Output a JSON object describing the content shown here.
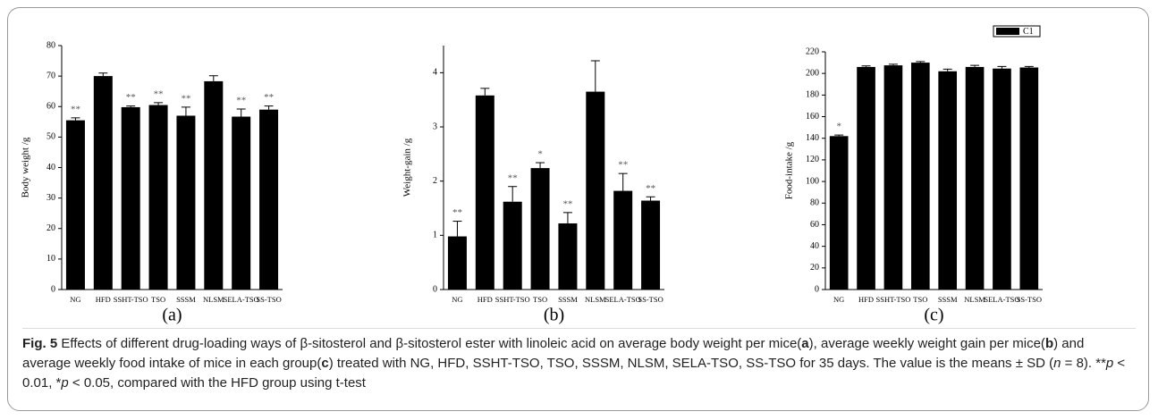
{
  "chart_data": [
    {
      "type": "bar",
      "panel": "(a)",
      "y_label": "Body weight /g",
      "categories": [
        "NG",
        "HFD",
        "SSHT-TSO",
        "TSO",
        "SSSM",
        "NLSM",
        "SELA-TSO",
        "SS-TSO"
      ],
      "values": [
        55.5,
        70,
        59.8,
        60.5,
        57,
        68.3,
        56.7,
        59
      ],
      "errors": [
        0.8,
        1.0,
        0.4,
        0.8,
        2.8,
        1.8,
        2.5,
        1.2
      ],
      "annotations": [
        "**",
        null,
        "**",
        "**",
        "**",
        null,
        "**",
        "**"
      ],
      "color": "#000000",
      "ylim": [
        0,
        80
      ],
      "yticks": [
        0,
        10,
        20,
        30,
        40,
        50,
        60,
        70,
        80
      ]
    },
    {
      "type": "bar",
      "panel": "(b)",
      "y_label": "Weight-gain /g",
      "categories": [
        "NG",
        "HFD",
        "SSHT-TSO",
        "TSO",
        "SSSM",
        "NLSM",
        "SELA-TSO",
        "SS-TSO"
      ],
      "values": [
        0.98,
        3.58,
        1.62,
        2.24,
        1.22,
        3.65,
        1.82,
        1.64
      ],
      "errors": [
        0.28,
        0.13,
        0.28,
        0.1,
        0.2,
        0.57,
        0.32,
        0.07
      ],
      "annotations": [
        "**",
        null,
        "**",
        "*",
        "**",
        null,
        "**",
        "**"
      ],
      "color": "#000000",
      "ylim": [
        0,
        4.5
      ],
      "yticks": [
        0,
        1,
        2,
        3,
        4
      ]
    },
    {
      "type": "bar",
      "panel": "(c)",
      "y_label": "Food-intake /g",
      "categories": [
        "NG",
        "HFD",
        "SSHT-TSO",
        "TSO",
        "SSSM",
        "NLSM",
        "SELA-TSO",
        "SS-TSO"
      ],
      "values": [
        142,
        206,
        207.5,
        210,
        202,
        206,
        204.5,
        205.5
      ],
      "errors": [
        1,
        1,
        1,
        1,
        2,
        1.5,
        2,
        1
      ],
      "annotations": [
        "*",
        null,
        null,
        null,
        null,
        null,
        null,
        null
      ],
      "legend": "C1",
      "legend_position": "upper right",
      "color": "#000000",
      "ylim": [
        0,
        220
      ],
      "yticks": [
        0,
        20,
        40,
        60,
        80,
        100,
        120,
        140,
        160,
        180,
        200,
        220
      ]
    }
  ],
  "caption": {
    "label": "Fig. 5",
    "parts": [
      " Effects of different drug-loading ways of β-sitosterol and β-sitosterol ester with linoleic acid on average body weight per mice(",
      "a",
      "), average weekly weight gain per mice(",
      "b",
      ") and average weekly food intake of mice in each group(",
      "c",
      ") treated with NG, HFD, SSHT-TSO, TSO, SSSM, NLSM, SELA-TSO, SS-TSO for 35 days. The value is the means ± SD (",
      "n",
      " = 8). **",
      "p",
      " < 0.01, *",
      "p",
      " < 0.05, compared with the HFD group using t-test"
    ]
  }
}
